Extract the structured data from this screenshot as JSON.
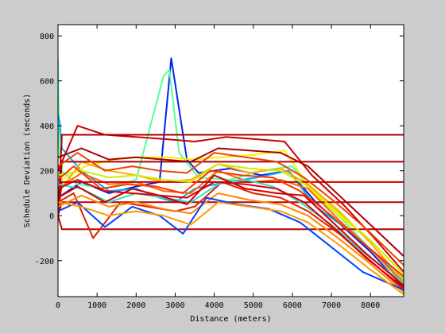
{
  "chart_data": {
    "type": "line",
    "title": "",
    "xlabel": "Distance (meters)",
    "ylabel": "Schedule Deviation (seconds)",
    "xlim": [
      0,
      8850
    ],
    "ylim": [
      -360,
      850
    ],
    "xticks": [
      0,
      1000,
      2000,
      3000,
      4000,
      5000,
      6000,
      7000,
      8000
    ],
    "yticks": [
      -200,
      0,
      200,
      400,
      600,
      800
    ],
    "grid": false,
    "legend": "none",
    "colormap": "jet",
    "colors": {
      "figure_background": "#cccccc",
      "axes_background": "#ffffff",
      "axes_frame": "#000000"
    },
    "series": [
      {
        "color": "#0022ee",
        "x": [
          0,
          600,
          1300,
          2000,
          2600,
          2900,
          3300,
          3600,
          4400,
          5200,
          5900,
          6600,
          7300,
          8000,
          8850
        ],
        "y": [
          80,
          150,
          100,
          130,
          150,
          700,
          250,
          190,
          210,
          180,
          200,
          60,
          -50,
          -160,
          -320
        ]
      },
      {
        "color": "#55ff99",
        "x": [
          0,
          30,
          80,
          500,
          1200,
          2000,
          2700,
          2850,
          3100,
          3600,
          4400,
          5200,
          6000,
          6600,
          7300,
          8000,
          8850
        ],
        "y": [
          700,
          320,
          200,
          140,
          120,
          160,
          620,
          650,
          280,
          170,
          160,
          200,
          220,
          90,
          -20,
          -150,
          -280
        ]
      },
      {
        "color": "#00aaff",
        "x": [
          0,
          40,
          100,
          600,
          1300,
          2000,
          2600,
          3000,
          3500,
          4300,
          5100,
          5900,
          6600,
          7400,
          8200,
          8850
        ],
        "y": [
          450,
          420,
          300,
          200,
          110,
          120,
          80,
          60,
          120,
          150,
          170,
          200,
          40,
          -60,
          -180,
          -300
        ]
      },
      {
        "color": "#ffee00",
        "x": [
          0,
          700,
          1400,
          2100,
          2800,
          3500,
          4200,
          5000,
          5800,
          6500,
          7200,
          8000,
          8850
        ],
        "y": [
          150,
          220,
          250,
          260,
          260,
          250,
          260,
          270,
          290,
          110,
          0,
          -110,
          -260
        ]
      },
      {
        "color": "#ffaa00",
        "x": [
          0,
          600,
          1300,
          2000,
          2700,
          3400,
          4100,
          4900,
          5700,
          6400,
          7200,
          8000,
          8850
        ],
        "y": [
          100,
          240,
          200,
          180,
          150,
          160,
          230,
          190,
          210,
          140,
          20,
          -120,
          -290
        ]
      },
      {
        "color": "#ff6600",
        "x": [
          0,
          600,
          1300,
          2000,
          2700,
          3400,
          4100,
          4900,
          5700,
          6400,
          7200,
          8000,
          8850
        ],
        "y": [
          120,
          190,
          140,
          150,
          110,
          100,
          200,
          150,
          160,
          120,
          -20,
          -150,
          -300
        ]
      },
      {
        "color": "#cc0000",
        "x": [
          0,
          500,
          1200,
          2000,
          2800,
          3500,
          4300,
          5100,
          5800,
          6500,
          7300,
          8100,
          8850
        ],
        "y": [
          200,
          400,
          360,
          350,
          340,
          330,
          350,
          340,
          330,
          180,
          50,
          -100,
          -250
        ]
      },
      {
        "color": "#aa0000",
        "x": [
          0,
          100,
          3500,
          3600,
          5800,
          5900,
          8850
        ],
        "y": [
          0,
          360,
          360,
          360,
          360,
          360,
          360
        ]
      },
      {
        "color": "#aa0000",
        "x": [
          0,
          100,
          3500,
          3600,
          5800,
          5900,
          8850
        ],
        "y": [
          0,
          240,
          240,
          240,
          240,
          240,
          240
        ]
      },
      {
        "color": "#bb0000",
        "x": [
          0,
          100,
          3500,
          3600,
          6000,
          6100,
          8850
        ],
        "y": [
          0,
          -60,
          -60,
          -60,
          -60,
          -60,
          -60
        ]
      },
      {
        "color": "#bb0000",
        "x": [
          0,
          100,
          3500,
          3600,
          6000,
          6100,
          8850
        ],
        "y": [
          0,
          60,
          60,
          60,
          60,
          60,
          60
        ]
      },
      {
        "color": "#cc0000",
        "x": [
          0,
          100,
          3400,
          3500,
          5900,
          6000,
          8850
        ],
        "y": [
          0,
          150,
          150,
          150,
          150,
          150,
          150
        ]
      },
      {
        "color": "#dd2200",
        "x": [
          0,
          400,
          900,
          1600,
          2300,
          3000,
          3500,
          4200,
          5000,
          5700,
          6400,
          7200,
          8000,
          8850
        ],
        "y": [
          60,
          100,
          -100,
          60,
          40,
          20,
          40,
          150,
          100,
          80,
          20,
          -80,
          -200,
          -330
        ]
      },
      {
        "color": "#ee4400",
        "x": [
          0,
          500,
          1200,
          1900,
          2600,
          3300,
          4000,
          4800,
          5600,
          6300,
          7100,
          7900,
          8850
        ],
        "y": [
          220,
          280,
          200,
          220,
          200,
          190,
          280,
          260,
          240,
          170,
          60,
          -60,
          -220
        ]
      },
      {
        "color": "#ff8800",
        "x": [
          0,
          600,
          1300,
          2000,
          2700,
          3400,
          4100,
          4900,
          5700,
          6400,
          7100,
          7900,
          8850
        ],
        "y": [
          40,
          90,
          40,
          60,
          30,
          10,
          100,
          70,
          50,
          0,
          -90,
          -200,
          -340
        ]
      },
      {
        "color": "#33ddcc",
        "x": [
          0,
          600,
          1300,
          2000,
          2700,
          3400,
          4100,
          4800,
          5500,
          6200,
          7000,
          7800,
          8850
        ],
        "y": [
          140,
          120,
          60,
          100,
          80,
          60,
          140,
          160,
          130,
          60,
          -40,
          -160,
          -300
        ]
      },
      {
        "color": "#0044ff",
        "x": [
          0,
          500,
          1200,
          1900,
          2600,
          3200,
          3800,
          4600,
          5400,
          6200,
          7000,
          7800,
          8850
        ],
        "y": [
          20,
          60,
          -50,
          40,
          0,
          -80,
          80,
          50,
          30,
          -30,
          -140,
          -250,
          -330
        ]
      },
      {
        "color": "#ccee00",
        "x": [
          0,
          600,
          1300,
          2000,
          2700,
          3400,
          4100,
          4900,
          5700,
          6400,
          7200,
          8000,
          8850
        ],
        "y": [
          180,
          200,
          170,
          180,
          160,
          150,
          230,
          210,
          200,
          130,
          10,
          -110,
          -260
        ]
      },
      {
        "color": "#cc0000",
        "x": [
          0,
          500,
          1200,
          1900,
          2600,
          3300,
          4000,
          4800,
          5600,
          6300,
          7100,
          7900,
          8850
        ],
        "y": [
          80,
          130,
          60,
          120,
          90,
          50,
          180,
          120,
          100,
          90,
          -40,
          -170,
          -310
        ]
      },
      {
        "color": "#ff3300",
        "x": [
          0,
          400,
          1100,
          1800,
          2500,
          3200,
          3900,
          4700,
          5500,
          6200,
          7000,
          7800,
          8850
        ],
        "y": [
          160,
          220,
          120,
          140,
          130,
          100,
          200,
          180,
          170,
          110,
          0,
          -120,
          -270
        ]
      },
      {
        "color": "#aa0000",
        "x": [
          0,
          600,
          1300,
          2000,
          2700,
          3400,
          4100,
          4900,
          5700,
          6400,
          7200,
          8000,
          8850
        ],
        "y": [
          260,
          300,
          250,
          260,
          250,
          240,
          300,
          290,
          280,
          220,
          90,
          -40,
          -180
        ]
      },
      {
        "color": "#ff9900",
        "x": [
          0,
          600,
          1300,
          2000,
          2700,
          3400,
          4100,
          4900,
          5700,
          6400,
          7200,
          8000,
          8850
        ],
        "y": [
          60,
          40,
          0,
          20,
          0,
          -40,
          60,
          40,
          20,
          -30,
          -130,
          -240,
          -350
        ]
      },
      {
        "color": "#dd0000",
        "x": [
          0,
          500,
          1200,
          1900,
          2600,
          3300,
          4000,
          4800,
          5600,
          6300,
          7100,
          7900,
          8850
        ],
        "y": [
          120,
          160,
          110,
          100,
          90,
          80,
          150,
          140,
          120,
          60,
          -60,
          -190,
          -320
        ]
      }
    ]
  }
}
